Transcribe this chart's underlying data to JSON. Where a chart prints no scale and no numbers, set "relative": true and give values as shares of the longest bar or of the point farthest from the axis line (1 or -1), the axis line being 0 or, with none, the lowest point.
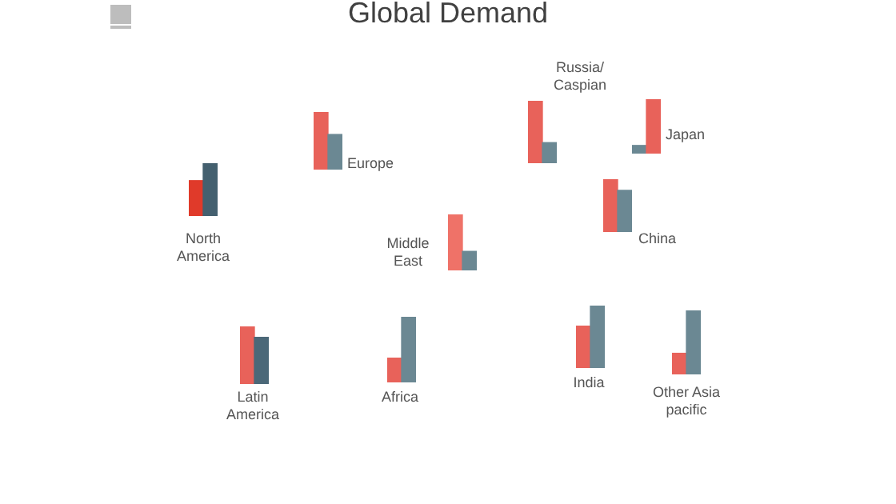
{
  "chart_data": [
    {
      "type": "other",
      "title": "Global Demand"
    },
    {
      "type": "bar",
      "title": "North America",
      "relative": true,
      "categories": [
        null,
        null
      ],
      "values": [
        0.67,
        1
      ],
      "colors": [
        "#e03a2a",
        "#44606f"
      ]
    },
    {
      "type": "bar",
      "title": "Europe",
      "relative": true,
      "categories": [
        null,
        null
      ],
      "values": [
        1,
        0.61
      ],
      "colors": [
        "#e8625a",
        "#6b8893"
      ]
    },
    {
      "type": "bar",
      "title": "Russia/ Caspian",
      "relative": true,
      "categories": [
        null,
        null
      ],
      "values": [
        1,
        0.33
      ],
      "colors": [
        "#e8625a",
        "#6b8893"
      ]
    },
    {
      "type": "bar",
      "title": "Japan",
      "relative": true,
      "categories": [
        null,
        null
      ],
      "values": [
        0.15,
        1
      ],
      "colors": [
        "#6b8893",
        "#e8625a"
      ]
    },
    {
      "type": "bar",
      "title": "Middle East",
      "relative": true,
      "categories": [
        null,
        null
      ],
      "values": [
        1,
        0.34
      ],
      "colors": [
        "#ef7268",
        "#6b8893"
      ]
    },
    {
      "type": "bar",
      "title": "China",
      "relative": true,
      "categories": [
        null,
        null
      ],
      "values": [
        1,
        0.79
      ],
      "colors": [
        "#e8625a",
        "#6b8893"
      ]
    },
    {
      "type": "bar",
      "title": "Latin America",
      "relative": true,
      "categories": [
        null,
        null
      ],
      "values": [
        1,
        0.81
      ],
      "colors": [
        "#e8625a",
        "#4b6878"
      ]
    },
    {
      "type": "bar",
      "title": "Africa",
      "relative": true,
      "categories": [
        null,
        null
      ],
      "values": [
        0.37,
        1
      ],
      "colors": [
        "#e8625a",
        "#6b8893"
      ]
    },
    {
      "type": "bar",
      "title": "India",
      "relative": true,
      "categories": [
        null,
        null
      ],
      "values": [
        0.67,
        1
      ],
      "colors": [
        "#e8625a",
        "#6b8893"
      ]
    },
    {
      "type": "bar",
      "title": "Other Asia pacific",
      "relative": true,
      "categories": [
        null,
        null
      ],
      "values": [
        0.33,
        1
      ],
      "colors": [
        "#e8625a",
        "#6b8893"
      ]
    }
  ]
}
